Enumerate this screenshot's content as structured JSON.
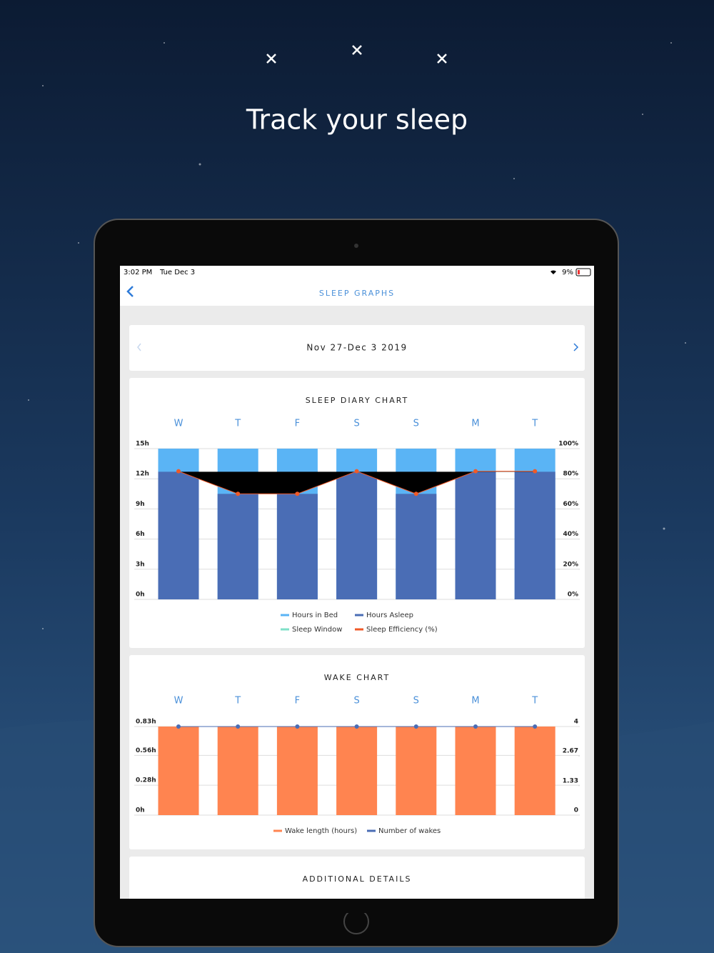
{
  "headline": "Track your sleep",
  "status_bar": {
    "time": "3:02 PM",
    "date": "Tue Dec 3",
    "battery": "9%"
  },
  "nav": {
    "title": "SLEEP GRAPHS"
  },
  "date_range": "Nov 27-Dec 3 2019",
  "sleep_chart": {
    "type": "bar",
    "title": "SLEEP DIARY CHART",
    "categories": [
      "W",
      "T",
      "F",
      "S",
      "S",
      "M",
      "T"
    ],
    "ylim": [
      0,
      15
    ],
    "yticks": [
      {
        "value": 0,
        "label": "0h"
      },
      {
        "value": 3,
        "label": "3h"
      },
      {
        "value": 6,
        "label": "6h"
      },
      {
        "value": 9,
        "label": "9h"
      },
      {
        "value": 12,
        "label": "12h"
      },
      {
        "value": 15,
        "label": "15h"
      }
    ],
    "y2lim": [
      0,
      100
    ],
    "y2ticks": [
      {
        "value": 0,
        "label": "0%"
      },
      {
        "value": 20,
        "label": "20%"
      },
      {
        "value": 40,
        "label": "40%"
      },
      {
        "value": 60,
        "label": "60%"
      },
      {
        "value": 80,
        "label": "80%"
      },
      {
        "value": 100,
        "label": "100%"
      }
    ],
    "grid": true,
    "series": [
      {
        "name": "Hours in Bed",
        "type": "bar",
        "color": "#5ab4f5",
        "values": [
          15,
          15,
          15,
          15,
          15,
          15,
          15
        ]
      },
      {
        "name": "Hours Asleep",
        "type": "bar",
        "color": "#4a6db5",
        "values": [
          12.7,
          10.5,
          10.5,
          12.7,
          10.5,
          12.7,
          12.7
        ]
      },
      {
        "name": "Sleep Window",
        "type": "area",
        "color": "#7fe0c8",
        "values": [
          12.7,
          12.7,
          12.7,
          12.7,
          12.7,
          12.7,
          12.7
        ]
      },
      {
        "name": "Sleep Efficiency (%)",
        "type": "line",
        "axis": "y2",
        "color": "#f05a28",
        "values": [
          85,
          70,
          70,
          85,
          70,
          85,
          85
        ]
      }
    ]
  },
  "wake_chart": {
    "type": "bar",
    "title": "WAKE CHART",
    "categories": [
      "W",
      "T",
      "F",
      "S",
      "S",
      "M",
      "T"
    ],
    "ylim": [
      0,
      0.83
    ],
    "yticks": [
      {
        "value": 0,
        "label": "0h"
      },
      {
        "value": 0.28,
        "label": "0.28h"
      },
      {
        "value": 0.56,
        "label": "0.56h"
      },
      {
        "value": 0.83,
        "label": "0.83h"
      }
    ],
    "y2lim": [
      0,
      4
    ],
    "y2ticks": [
      0,
      1.33,
      2.67,
      4
    ],
    "grid": true,
    "series": [
      {
        "name": "Wake length (hours)",
        "type": "bar",
        "color": "#ff8450",
        "values": [
          0.83,
          0.83,
          0.83,
          0.83,
          0.83,
          0.83,
          0.83
        ]
      },
      {
        "name": "Number of wakes",
        "type": "line",
        "axis": "y2",
        "color": "#4a6db5",
        "values": [
          4,
          4,
          4,
          4,
          4,
          4,
          4
        ]
      }
    ]
  },
  "additional_details": {
    "title": "ADDITIONAL DETAILS"
  }
}
